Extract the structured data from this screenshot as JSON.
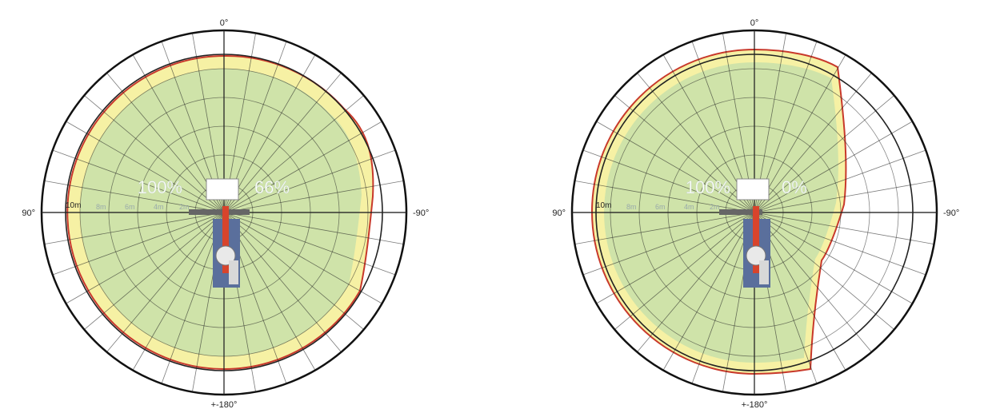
{
  "diagrams": [
    {
      "angle_labels": {
        "top": "0°",
        "left": "90°",
        "right": "-90°",
        "bottom": "+-180°"
      },
      "ring_labels": [
        "10m",
        "8m",
        "6m",
        "4m",
        "2m"
      ],
      "support_left_percent": "100%",
      "support_right_percent": "66%"
    },
    {
      "angle_labels": {
        "top": "0°",
        "left": "90°",
        "right": "-90°",
        "bottom": "+-180°"
      },
      "ring_labels": [
        "10m",
        "8m",
        "6m",
        "4m",
        "2m"
      ],
      "support_left_percent": "100%",
      "support_right_percent": "0%"
    }
  ],
  "colors": {
    "stable_zone": "#cfe3a9",
    "boundary_zone": "#f6f1a4",
    "limit_line": "#c8392b",
    "grid": "#222222",
    "machine_boom": "#d8442c"
  }
}
